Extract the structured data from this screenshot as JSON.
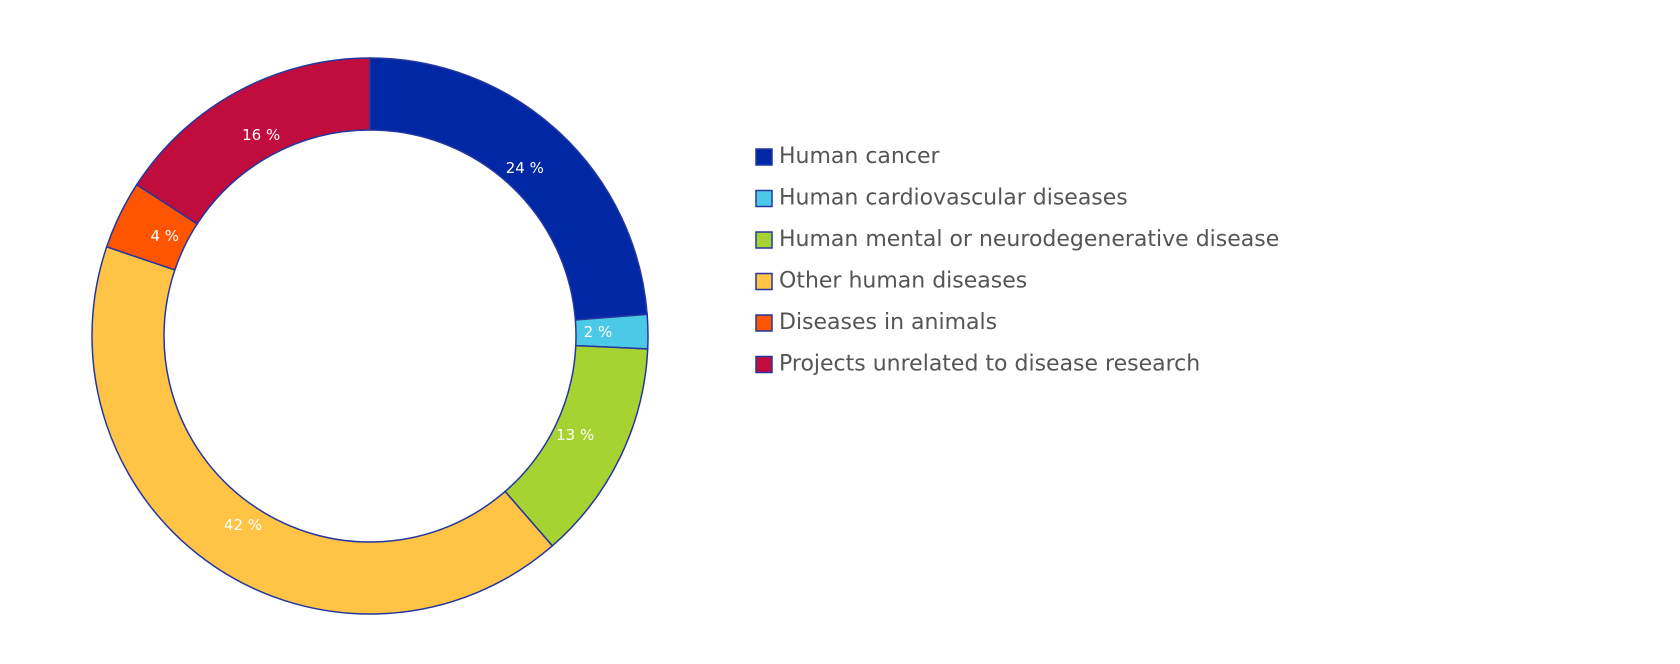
{
  "chart_data": {
    "type": "pie",
    "donut": true,
    "start_angle": "top",
    "direction": "clockwise",
    "legend_position": "right",
    "slices": [
      {
        "label": "Human cancer",
        "value": 24,
        "label_text": "24 %",
        "color": "#0028a5"
      },
      {
        "label": "Human cardiovascular diseases",
        "value": 2,
        "label_text": "2 %",
        "color": "#4cc9e6"
      },
      {
        "label": "Human mental or neurodegenerative disease",
        "value": 13,
        "label_text": "13 %",
        "color": "#a6d332"
      },
      {
        "label": "Other human diseases",
        "value": 42,
        "label_text": "42 %",
        "color": "#ffc445"
      },
      {
        "label": "Diseases in animals",
        "value": 4,
        "label_text": "4 %",
        "color": "#ff5500"
      },
      {
        "label": "Projects unrelated to disease research",
        "value": 16,
        "label_text": "16 %",
        "color": "#c00d3e"
      }
    ]
  }
}
